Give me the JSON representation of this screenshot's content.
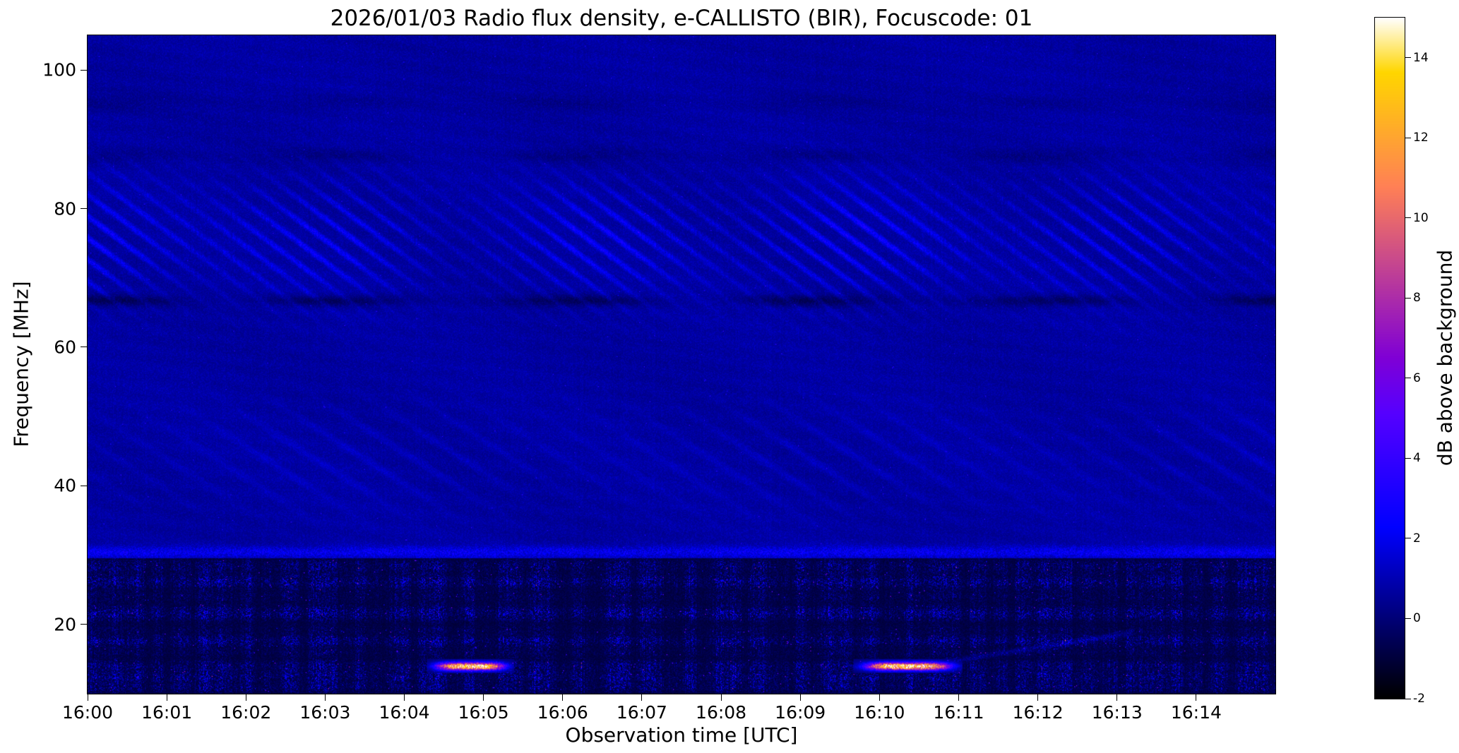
{
  "figure": {
    "title": "2026/01/03  Radio flux density, e-CALLISTO (BIR), Focuscode: 01",
    "xlabel": "Observation time [UTC]",
    "ylabel": "Frequency [MHz]"
  },
  "axes": {
    "x_tick_labels": [
      "16:00",
      "16:01",
      "16:02",
      "16:03",
      "16:04",
      "16:05",
      "16:06",
      "16:07",
      "16:08",
      "16:09",
      "16:10",
      "16:11",
      "16:12",
      "16:13",
      "16:14"
    ],
    "x_tick_minutes": [
      0,
      1,
      2,
      3,
      4,
      5,
      6,
      7,
      8,
      9,
      10,
      11,
      12,
      13,
      14
    ],
    "x_range_minutes": [
      0,
      15
    ],
    "y_tick_labels": [
      "20",
      "40",
      "60",
      "80",
      "100"
    ],
    "y_tick_values": [
      20,
      40,
      60,
      80,
      100
    ],
    "y_range_mhz": [
      10,
      105
    ]
  },
  "colorbar": {
    "label": "dB above background",
    "tick_labels": [
      "-2",
      "0",
      "2",
      "4",
      "6",
      "8",
      "10",
      "12",
      "14"
    ],
    "tick_values": [
      -2,
      0,
      2,
      4,
      6,
      8,
      10,
      12,
      14
    ],
    "range_db": [
      -2,
      15
    ],
    "colormap": "gnuplot2",
    "colors": {
      "low": "#000000",
      "blue": "#0000ff",
      "violet": "#8000d6",
      "magenta": "#e800a0",
      "orange": "#ff8533",
      "yellow": "#ffd600",
      "high": "#ffffff"
    }
  },
  "chart_data": {
    "type": "heatmap",
    "title": "2026/01/03  Radio flux density, e-CALLISTO (BIR), Focuscode: 01",
    "xlabel": "Observation time [UTC]",
    "ylabel": "Frequency [MHz]",
    "x_range_utc": [
      "16:00",
      "16:15"
    ],
    "y_range_mhz": [
      10,
      105
    ],
    "value_label": "dB above background",
    "value_range_db": [
      -2,
      15
    ],
    "colormap": "gnuplot2",
    "background_db": 0.7,
    "grid": false,
    "legend": false,
    "colorbar_position": "right",
    "features": [
      {
        "name": "drifting-fringe-band",
        "freq_mhz": [
          62,
          86
        ],
        "time_utc": [
          "16:00",
          "16:15"
        ],
        "peak_db": 3,
        "description": "Slanted blue interference fringes drifting downward in frequency (~8 MHz/min, ~3 MHz spacing), strongest near 72-82 MHz"
      },
      {
        "name": "faint-fringe-band",
        "freq_mhz": [
          33,
          56
        ],
        "time_utc": [
          "16:00",
          "16:15"
        ],
        "peak_db": 1.5,
        "description": "Very faint diagonal fringes over the dark blue background"
      },
      {
        "name": "dark-absorption-lane",
        "freq_mhz": [
          66,
          67.5
        ],
        "time_utc": [
          "16:00",
          "16:15"
        ],
        "peak_db": -1,
        "description": "Narrow dark horizontal lane near 66.7 MHz"
      },
      {
        "name": "bright-edge-band",
        "freq_mhz": [
          29.5,
          31.5
        ],
        "time_utc": [
          "16:00",
          "16:15"
        ],
        "peak_db": 2.5,
        "description": "Bright blue horizontal band just above the noisy low-frequency region"
      },
      {
        "name": "broadband-interference",
        "freq_mhz": [
          10,
          29.5
        ],
        "time_utc": [
          "16:00",
          "16:15"
        ],
        "peak_db": 8,
        "description": "Strong speckled RFI: alternating bright blue/violet bands and black gaps with sparse magenta-pink hot pixels"
      },
      {
        "name": "bright-burst-1",
        "freq_mhz": [
          13.1,
          14.8
        ],
        "time_utc": [
          "16:04:20",
          "16:05:20"
        ],
        "t_min": [
          4.32,
          5.35
        ],
        "peak_db": 14,
        "description": "Intense orange-yellow horizontal streak near 14 MHz"
      },
      {
        "name": "bright-burst-2",
        "freq_mhz": [
          13.1,
          14.8
        ],
        "time_utc": [
          "16:09:45",
          "16:11:00"
        ],
        "t_min": [
          9.72,
          11.0
        ],
        "peak_db": 14,
        "description": "Intense orange-yellow horizontal streak near 14 MHz"
      },
      {
        "name": "faint-drifting-line",
        "freq_mhz": [
          14.5,
          19
        ],
        "time_utc": [
          "16:11",
          "16:13"
        ],
        "t_min": [
          10.8,
          13.2
        ],
        "peak_db": 2,
        "description": "Thin faint blue line drifting upward in frequency"
      }
    ]
  }
}
